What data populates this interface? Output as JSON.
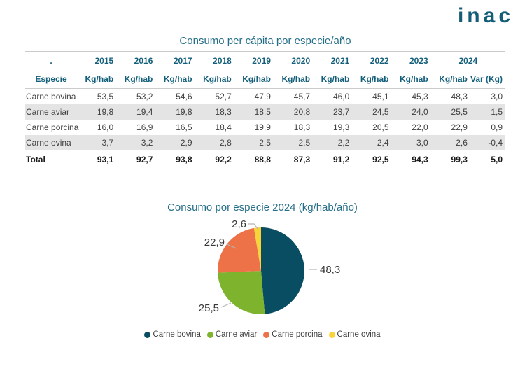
{
  "logo": {
    "text": "inac"
  },
  "table": {
    "title": "Consumo per cápita por especie/año",
    "corner_label": ".",
    "especie_label": "Especie",
    "years": [
      "2015",
      "2016",
      "2017",
      "2018",
      "2019",
      "2020",
      "2021",
      "2022",
      "2023"
    ],
    "final_year": "2024",
    "unit_label": "Kg/hab",
    "var_label": "Var (Kg)",
    "rows": [
      {
        "label": "Carne bovina",
        "values": [
          "53,5",
          "53,2",
          "54,6",
          "52,7",
          "47,9",
          "45,7",
          "46,0",
          "45,1",
          "45,3",
          "48,3",
          "3,0"
        ]
      },
      {
        "label": "Carne aviar",
        "values": [
          "19,8",
          "19,4",
          "19,8",
          "18,3",
          "18,5",
          "20,8",
          "23,7",
          "24,5",
          "24,0",
          "25,5",
          "1,5"
        ]
      },
      {
        "label": "Carne porcina",
        "values": [
          "16,0",
          "16,9",
          "16,5",
          "18,4",
          "19,9",
          "18,3",
          "19,3",
          "20,5",
          "22,0",
          "22,9",
          "0,9"
        ]
      },
      {
        "label": "Carne ovina",
        "values": [
          "3,7",
          "3,2",
          "2,9",
          "2,8",
          "2,5",
          "2,5",
          "2,2",
          "2,4",
          "3,0",
          "2,6",
          "-0,4"
        ]
      }
    ],
    "total_row": {
      "label": "Total",
      "values": [
        "93,1",
        "92,7",
        "93,8",
        "92,2",
        "88,8",
        "87,3",
        "91,2",
        "92,5",
        "94,3",
        "99,3",
        "5,0"
      ]
    }
  },
  "chart_data": {
    "type": "pie",
    "title": "Consumo por especie 2024 (kg/hab/año)",
    "categories": [
      "Carne bovina",
      "Carne aviar",
      "Carne porcina",
      "Carne ovina"
    ],
    "values": [
      48.3,
      25.5,
      22.9,
      2.6
    ],
    "labels": [
      "48,3",
      "25,5",
      "22,9",
      "2,6"
    ],
    "colors": [
      "#084d62",
      "#7db32d",
      "#ed7248",
      "#f9d33a"
    ],
    "total": 99.3,
    "start_angle_deg": 0,
    "direction": "clockwise",
    "legend_position": "bottom"
  },
  "colors": {
    "accent_teal_dark": "#135e76",
    "accent_teal_header": "#14607c",
    "accent_teal_title": "#266e88",
    "row_stripe": "#e4e4e4",
    "divider": "#cbcbcb",
    "body_text": "#3f3f3f"
  }
}
